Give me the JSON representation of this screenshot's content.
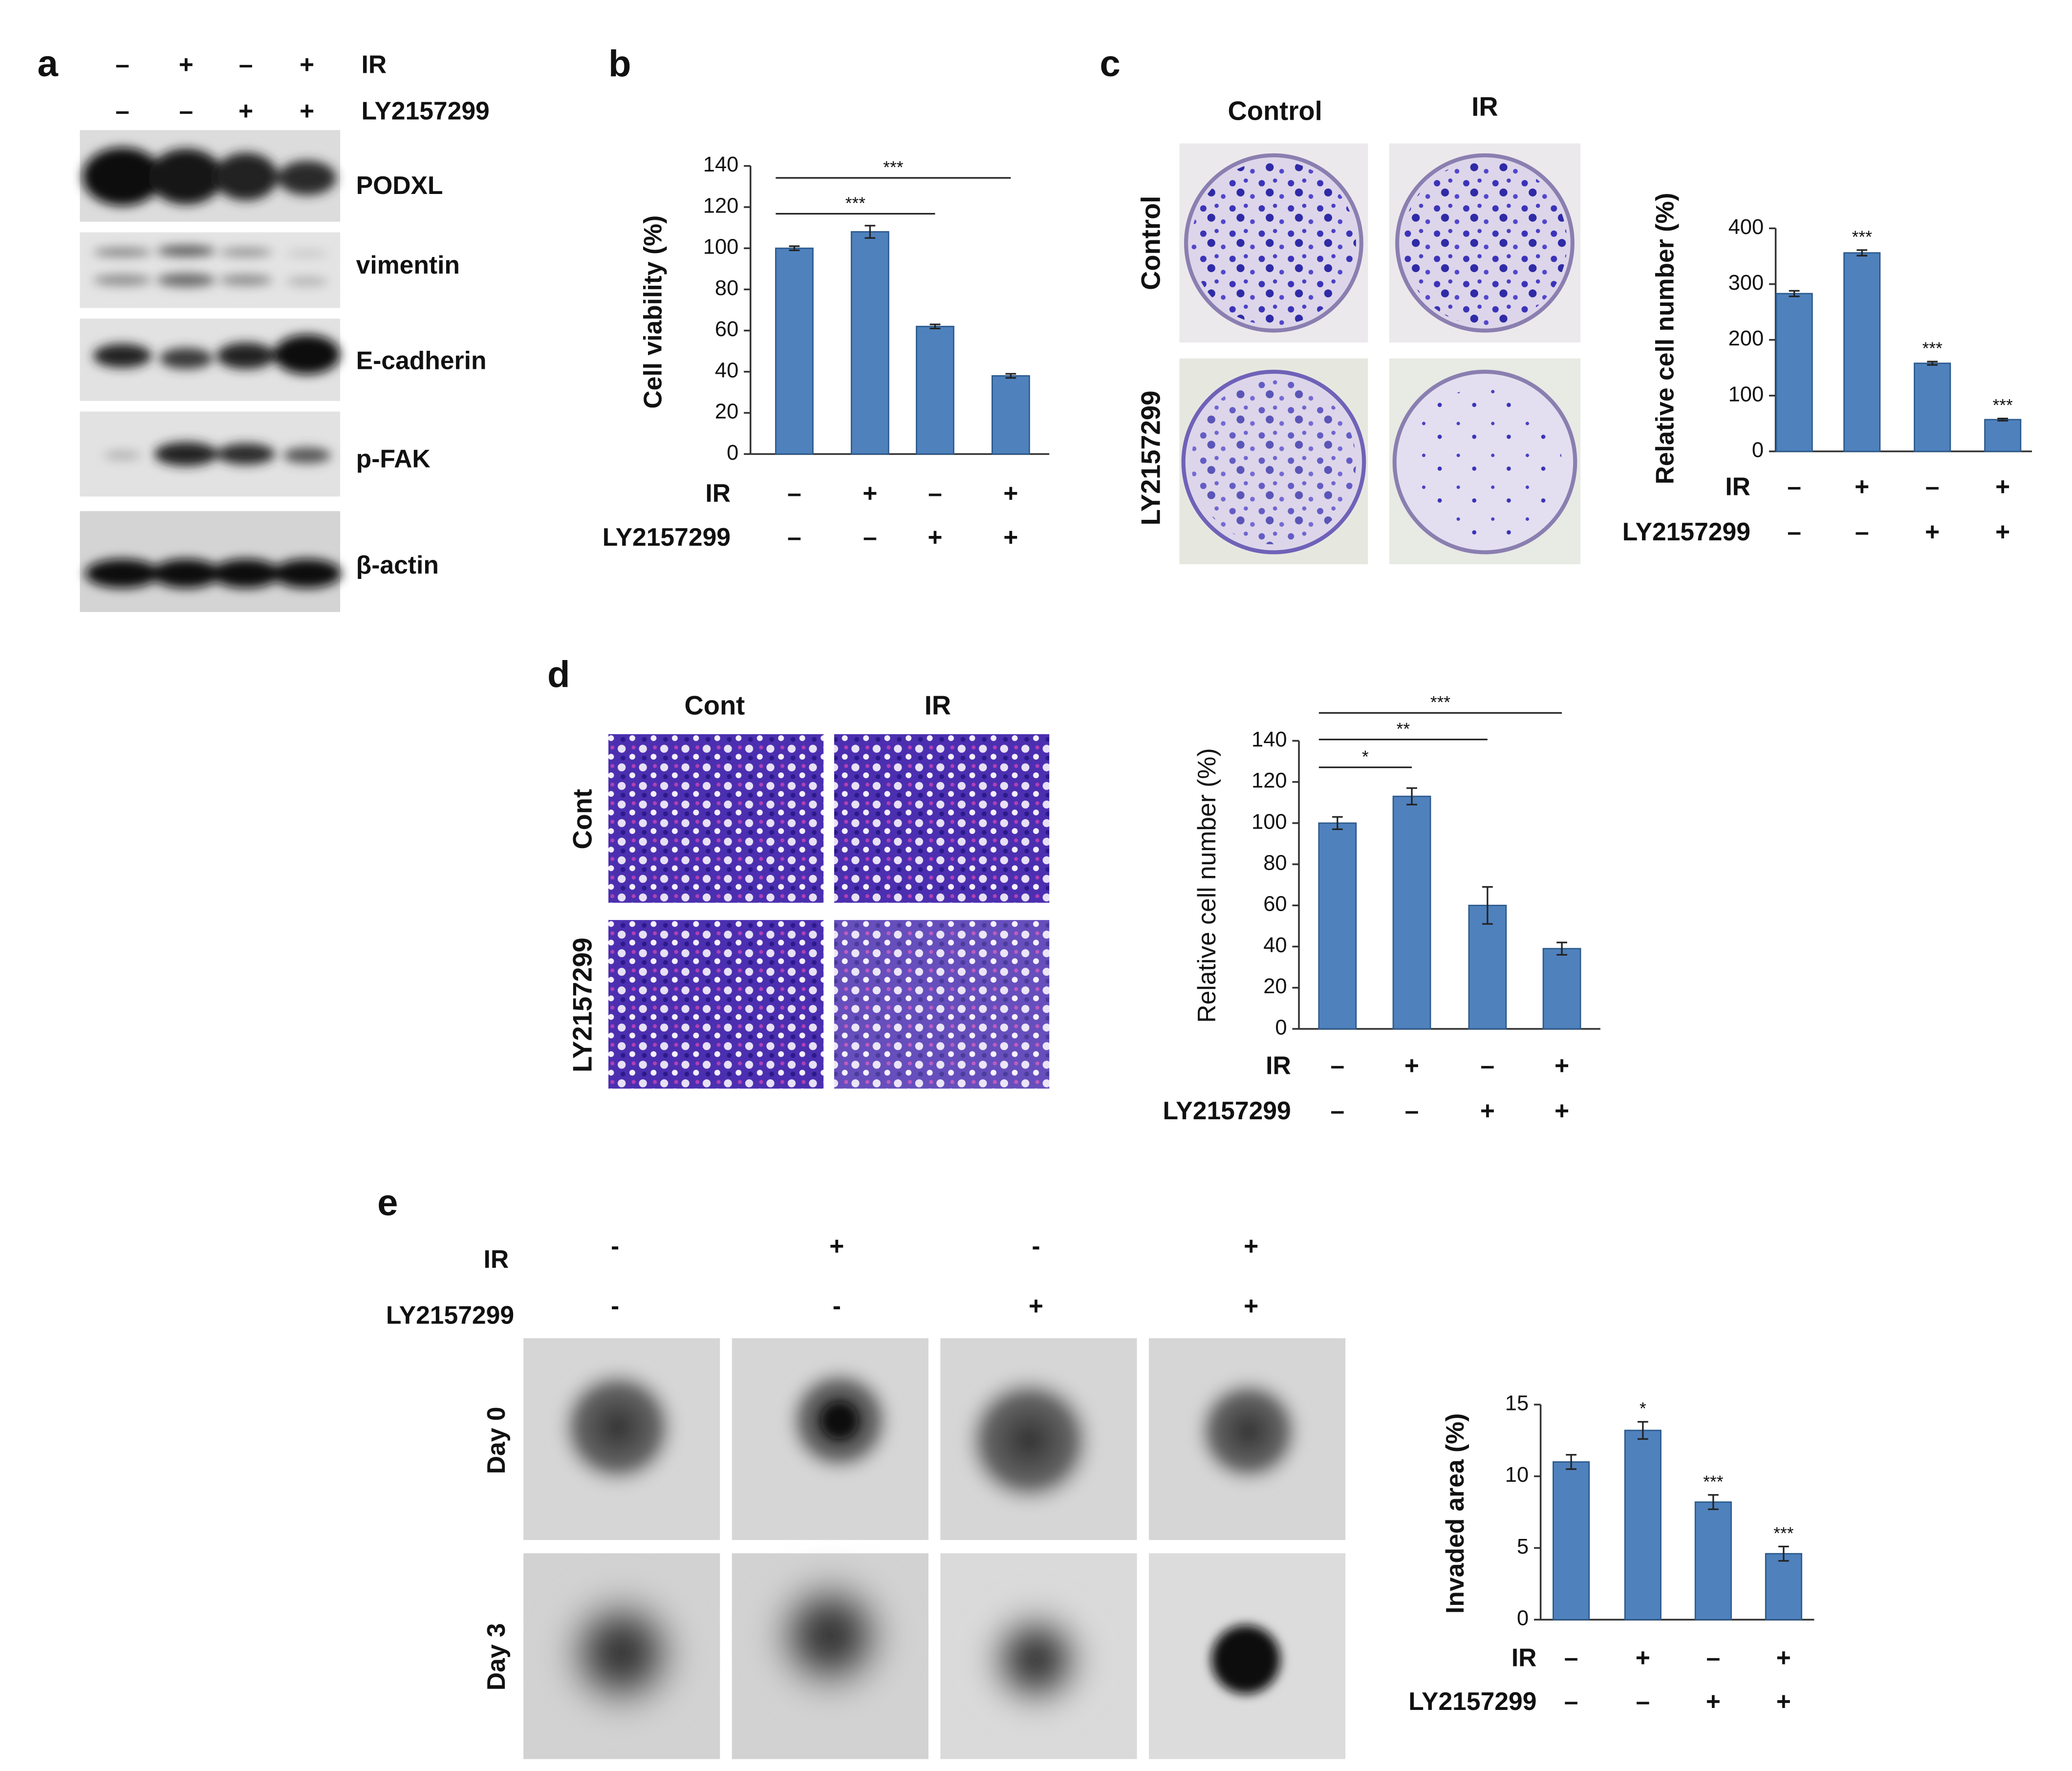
{
  "panel_labels": [
    "a",
    "b",
    "c",
    "d",
    "e"
  ],
  "western_blot": {
    "conditions": [
      {
        "name": "IR",
        "signs": [
          "–",
          "+",
          "–",
          "+"
        ]
      },
      {
        "name": "LY2157299",
        "signs": [
          "–",
          "–",
          "+",
          "+"
        ]
      }
    ],
    "bands": [
      "PODXL",
      "vimentin",
      "E-cadherin",
      "p-FAK",
      "β-actin"
    ]
  },
  "colony_images": {
    "columns": [
      "Control",
      "IR"
    ],
    "rows": [
      "Control",
      "LY2157299"
    ]
  },
  "transwell_images": {
    "columns": [
      "Cont",
      "IR"
    ],
    "rows": [
      "Cont",
      "LY2157299"
    ]
  },
  "spheroid_images": {
    "conditions": [
      {
        "name": "IR",
        "signs": [
          "-",
          "+",
          "-",
          "+"
        ]
      },
      {
        "name": "LY2157299",
        "signs": [
          "-",
          "-",
          "+",
          "+"
        ]
      }
    ],
    "rows": [
      "Day 0",
      "Day 3"
    ]
  },
  "chart_data": [
    {
      "type": "bar",
      "y_label": "Cell viability (%)",
      "color": "#4f81bd",
      "values": [
        100,
        108,
        62,
        38
      ],
      "errors": [
        1,
        3,
        1,
        1
      ],
      "ylim": [
        0,
        140
      ],
      "yticks": [
        0,
        20,
        40,
        60,
        80,
        100,
        120,
        140
      ],
      "conditions": [
        {
          "name": "IR",
          "signs": [
            "–",
            "+",
            "–",
            "+"
          ]
        },
        {
          "name": "LY2157299",
          "signs": [
            "–",
            "–",
            "+",
            "+"
          ]
        }
      ],
      "brackets": [
        {
          "label": "***",
          "from": 0,
          "to": 3
        },
        {
          "label": "***",
          "from": 0,
          "to": 2
        }
      ]
    },
    {
      "type": "bar",
      "y_label": "Relative cell number (%)",
      "color": "#4f81bd",
      "values": [
        283,
        356,
        158,
        57
      ],
      "errors": [
        5,
        5,
        3,
        2
      ],
      "ylim": [
        0,
        400
      ],
      "yticks": [
        0,
        100,
        200,
        300,
        400
      ],
      "star_labels": [
        null,
        "***",
        "***",
        "***"
      ],
      "conditions": [
        {
          "name": "IR",
          "signs": [
            "–",
            "+",
            "–",
            "+"
          ]
        },
        {
          "name": "LY2157299",
          "signs": [
            "–",
            "–",
            "+",
            "+"
          ]
        }
      ]
    },
    {
      "type": "bar",
      "y_label": "Relative cell number (%)",
      "color": "#4f81bd",
      "values": [
        100,
        113,
        60,
        39
      ],
      "errors": [
        3,
        4,
        9,
        3
      ],
      "ylim": [
        0,
        140
      ],
      "yticks": [
        0,
        20,
        40,
        60,
        80,
        100,
        120,
        140
      ],
      "conditions": [
        {
          "name": "IR",
          "signs": [
            "–",
            "+",
            "–",
            "+"
          ]
        },
        {
          "name": "LY2157299",
          "signs": [
            "–",
            "–",
            "+",
            "+"
          ]
        }
      ],
      "brackets": [
        {
          "label": "***",
          "from": 0,
          "to": 3
        },
        {
          "label": "**",
          "from": 0,
          "to": 2
        },
        {
          "label": "*",
          "from": 0,
          "to": 1
        }
      ]
    },
    {
      "type": "bar",
      "y_label": "Invaded area (%)",
      "color": "#4f81bd",
      "values": [
        11,
        13.2,
        8.2,
        4.6
      ],
      "errors": [
        0.5,
        0.6,
        0.5,
        0.5
      ],
      "ylim": [
        0,
        15
      ],
      "yticks": [
        0,
        5,
        10,
        15
      ],
      "star_labels": [
        null,
        "*",
        "***",
        "***"
      ],
      "conditions": [
        {
          "name": "IR",
          "signs": [
            "–",
            "+",
            "–",
            "+"
          ]
        },
        {
          "name": "LY2157299",
          "signs": [
            "–",
            "–",
            "+",
            "+"
          ]
        }
      ]
    }
  ]
}
